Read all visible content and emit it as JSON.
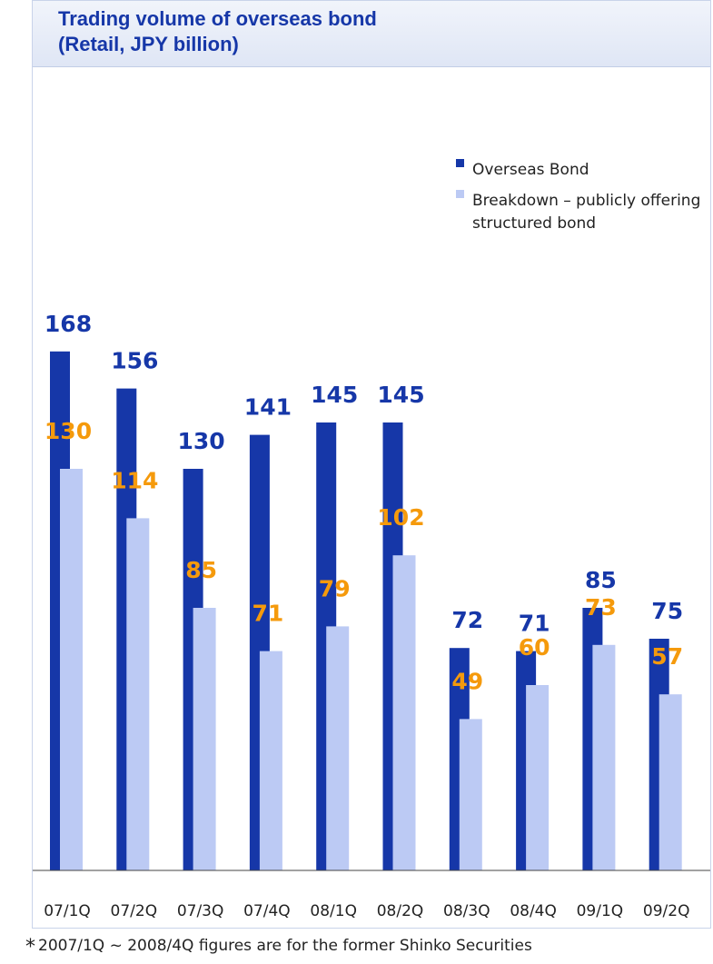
{
  "chart_data": {
    "type": "bar",
    "title_lines": [
      "Trading volume of overseas bond",
      "(Retail, JPY billion)"
    ],
    "categories": [
      "07/1Q",
      "07/2Q",
      "07/3Q",
      "07/4Q",
      "08/1Q",
      "08/2Q",
      "08/3Q",
      "08/4Q",
      "09/1Q",
      "09/2Q"
    ],
    "series": [
      {
        "name": "Overseas Bond",
        "color": "#1637a8",
        "values": [
          168,
          156,
          130,
          141,
          145,
          145,
          72,
          71,
          85,
          75
        ]
      },
      {
        "name_lines": [
          "Breakdown – publicly offering",
          "structured bond"
        ],
        "color": "#bccaf4",
        "values": [
          130,
          114,
          85,
          71,
          79,
          102,
          49,
          60,
          73,
          57
        ]
      }
    ],
    "ylim": [
      0,
      200
    ],
    "legend_position": "top-right",
    "grid": false,
    "colors": {
      "main_label": "#1637a8",
      "sub_label": "#f59a0c"
    }
  },
  "footnote": {
    "marker": "*",
    "text": "2007/1Q ~ 2008/4Q figures are for the former Shinko Securities"
  }
}
